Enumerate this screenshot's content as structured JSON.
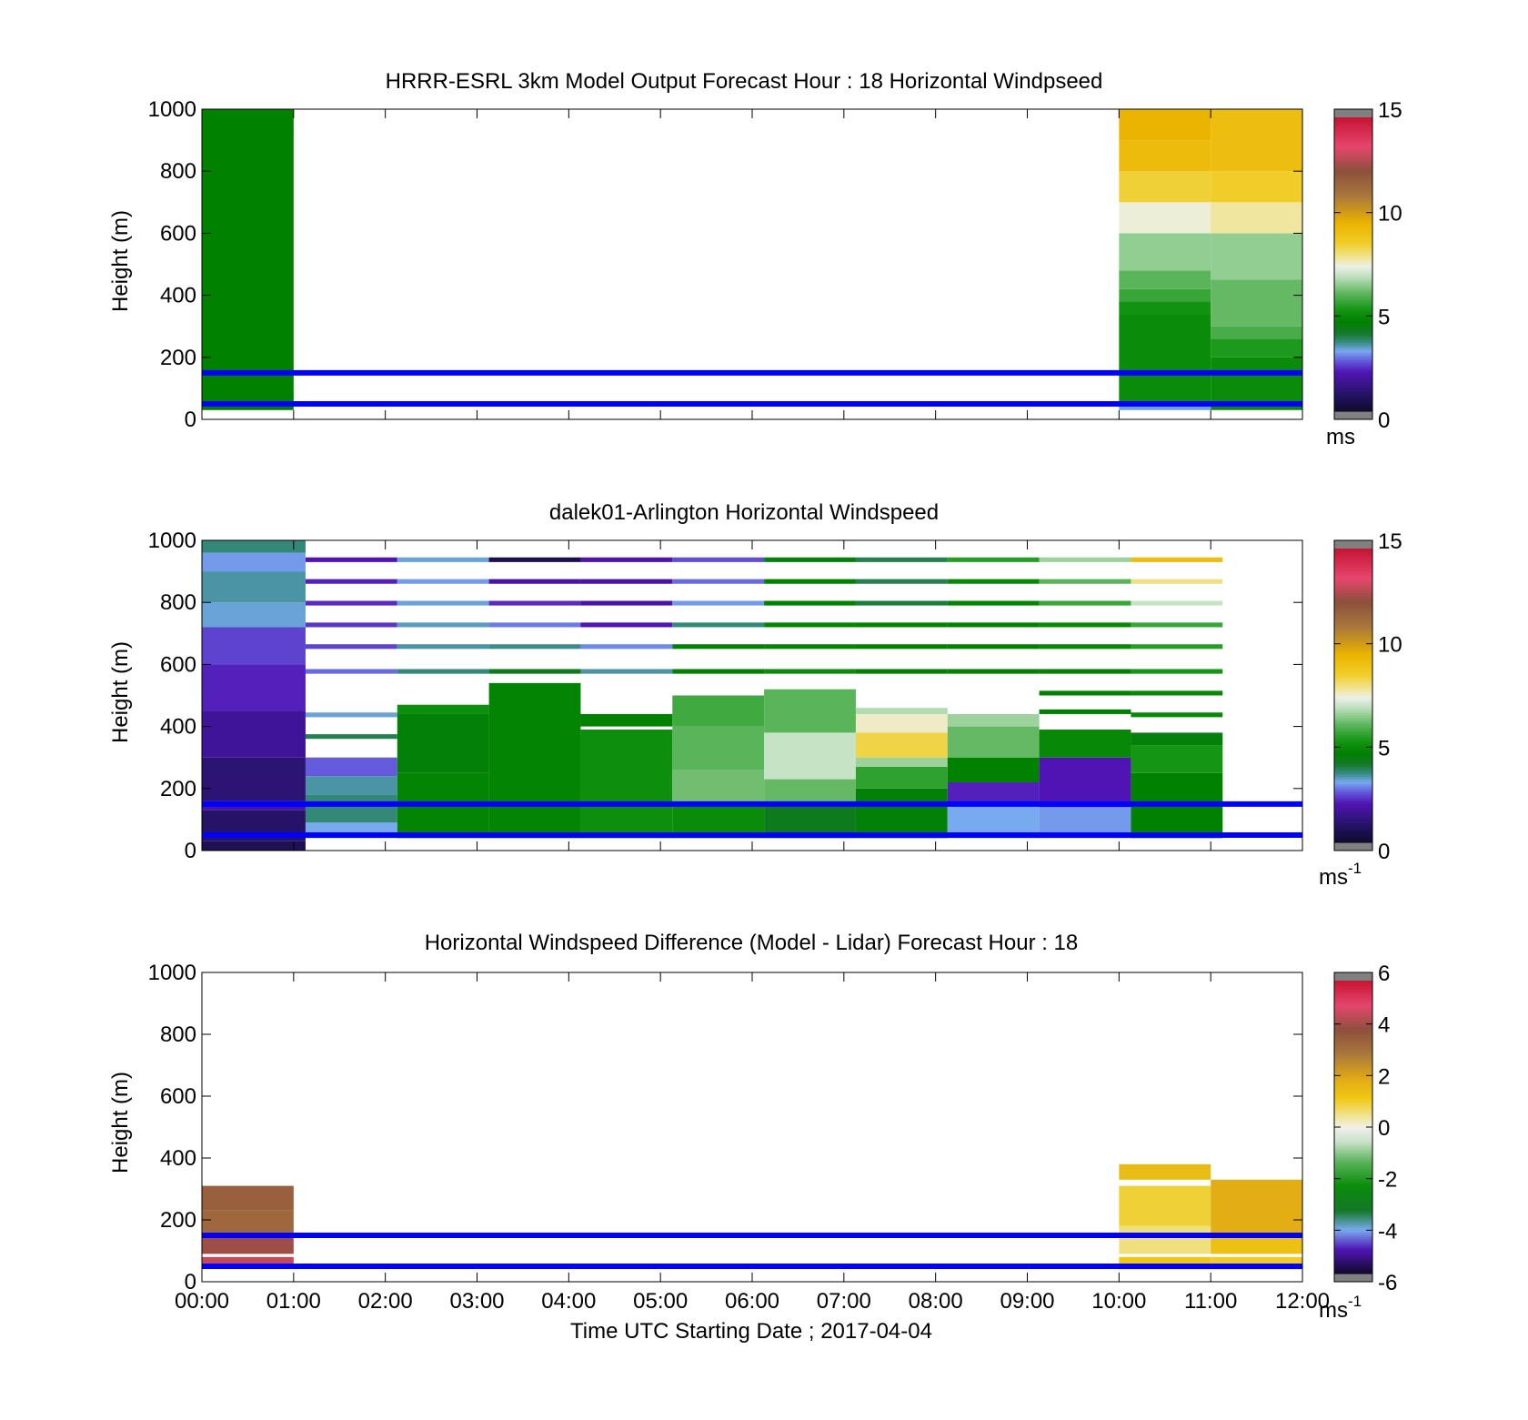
{
  "chart_data": [
    {
      "type": "heatmap",
      "title": "HRRR-ESRL 3km Model Output   Forecast Hour : 18 Horizontal Windpseed",
      "xlabel": "",
      "ylabel": "Height (m)",
      "ylim": [
        0,
        1000
      ],
      "yticks": [
        "0",
        "200",
        "400",
        "600",
        "800",
        "1000"
      ],
      "xticks": [
        "00:00",
        "01:00",
        "02:00",
        "03:00",
        "04:00",
        "05:00",
        "06:00",
        "07:00",
        "08:00",
        "09:00",
        "10:00",
        "11:00",
        "12:00"
      ],
      "xtick_labels_shown": false,
      "colorbar": {
        "min": 0,
        "max": 15,
        "ticks": [
          "0",
          "5",
          "10",
          "15"
        ],
        "unit": "ms",
        "unit_sup": ""
      },
      "hlines": [
        50,
        150
      ],
      "hline_color": "#0000ff",
      "columns": [
        {
          "t0": 0,
          "t1": 1,
          "cells": [
            [
              30,
              1000,
              4.6
            ]
          ]
        },
        {
          "t0": 10,
          "t1": 11,
          "cells": [
            [
              30,
              50,
              3.2
            ],
            [
              50,
              340,
              4.9
            ],
            [
              340,
              380,
              5.1
            ],
            [
              380,
              420,
              5.6
            ],
            [
              420,
              480,
              6.0
            ],
            [
              480,
              600,
              6.5
            ],
            [
              600,
              700,
              7.5
            ],
            [
              700,
              800,
              8.5
            ],
            [
              800,
              900,
              9.3
            ],
            [
              900,
              1000,
              9.6
            ]
          ]
        },
        {
          "t0": 11,
          "t1": 12,
          "cells": [
            [
              30,
              200,
              4.9
            ],
            [
              200,
              260,
              5.3
            ],
            [
              260,
              300,
              5.8
            ],
            [
              300,
              450,
              6.1
            ],
            [
              450,
              600,
              6.5
            ],
            [
              600,
              700,
              7.8
            ],
            [
              700,
              800,
              8.6
            ],
            [
              800,
              1000,
              9.2
            ]
          ]
        }
      ]
    },
    {
      "type": "heatmap",
      "title": "dalek01-Arlington  Horizontal Windspeed",
      "xlabel": "",
      "ylabel": "Height (m)",
      "ylim": [
        0,
        1000
      ],
      "yticks": [
        "0",
        "200",
        "400",
        "600",
        "800",
        "1000"
      ],
      "xticks": [
        "00:00",
        "01:00",
        "02:00",
        "03:00",
        "04:00",
        "05:00",
        "06:00",
        "07:00",
        "08:00",
        "09:00",
        "10:00",
        "11:00",
        "12:00"
      ],
      "xtick_labels_shown": false,
      "colorbar": {
        "min": 0,
        "max": 15,
        "ticks": [
          "0",
          "5",
          "10",
          "15"
        ],
        "unit": "ms",
        "unit_sup": "-1"
      },
      "hlines": [
        50,
        150
      ],
      "hline_color": "#0000ff",
      "columns": [
        {
          "t0": 0,
          "t1": 1.13,
          "cells": [
            [
              0,
              30,
              0.6
            ],
            [
              30,
              130,
              0.9
            ],
            [
              130,
              160,
              1.8
            ],
            [
              160,
              300,
              1.1
            ],
            [
              300,
              450,
              1.6
            ],
            [
              450,
              600,
              2.1
            ],
            [
              600,
              720,
              2.4
            ],
            [
              720,
              800,
              3.2
            ],
            [
              800,
              900,
              3.4
            ],
            [
              900,
              960,
              3.0
            ],
            [
              960,
              1000,
              3.6
            ]
          ]
        },
        {
          "t0": 1.13,
          "t1": 2.13,
          "cells": [
            [
              40,
              90,
              3.1
            ],
            [
              90,
              180,
              3.6
            ],
            [
              180,
              240,
              3.4
            ],
            [
              240,
              300,
              2.6
            ],
            [
              360,
              375,
              3.8
            ],
            [
              430,
              445,
              3.2
            ],
            [
              570,
              585,
              2.7
            ],
            [
              650,
              665,
              2.4
            ],
            [
              720,
              735,
              2.3
            ],
            [
              790,
              805,
              2.2
            ],
            [
              860,
              875,
              2.1
            ],
            [
              930,
              945,
              2.0
            ]
          ]
        },
        {
          "t0": 2.13,
          "t1": 3.13,
          "cells": [
            [
              40,
              250,
              4.7
            ],
            [
              250,
              440,
              4.5
            ],
            [
              440,
              470,
              5.0
            ],
            [
              570,
              585,
              3.6
            ],
            [
              650,
              665,
              3.4
            ],
            [
              720,
              735,
              3.3
            ],
            [
              790,
              805,
              3.2
            ],
            [
              860,
              875,
              3.0
            ],
            [
              930,
              945,
              3.2
            ]
          ]
        },
        {
          "t0": 3.13,
          "t1": 4.13,
          "cells": [
            [
              40,
              540,
              4.7
            ],
            [
              570,
              585,
              4.2
            ],
            [
              650,
              665,
              3.5
            ],
            [
              720,
              735,
              2.8
            ],
            [
              790,
              805,
              2.2
            ],
            [
              860,
              875,
              1.8
            ],
            [
              930,
              945,
              0.5
            ]
          ]
        },
        {
          "t0": 4.13,
          "t1": 5.13,
          "cells": [
            [
              40,
              390,
              5.0
            ],
            [
              400,
              440,
              4.6
            ],
            [
              570,
              585,
              3.4
            ],
            [
              650,
              665,
              2.9
            ],
            [
              720,
              735,
              2.0
            ],
            [
              790,
              805,
              1.8
            ],
            [
              860,
              875,
              1.8
            ],
            [
              930,
              945,
              1.9
            ]
          ]
        },
        {
          "t0": 5.13,
          "t1": 6.13,
          "cells": [
            [
              40,
              150,
              4.9
            ],
            [
              150,
              260,
              6.2
            ],
            [
              260,
              400,
              6.0
            ],
            [
              400,
              500,
              5.7
            ],
            [
              570,
              585,
              4.6
            ],
            [
              650,
              665,
              4.5
            ],
            [
              720,
              735,
              3.6
            ],
            [
              790,
              805,
              3.0
            ],
            [
              860,
              875,
              2.7
            ],
            [
              930,
              945,
              2.5
            ]
          ]
        },
        {
          "t0": 6.13,
          "t1": 7.13,
          "cells": [
            [
              40,
              150,
              4.2
            ],
            [
              150,
              230,
              6.1
            ],
            [
              230,
              380,
              7.0
            ],
            [
              380,
              520,
              6.0
            ],
            [
              570,
              585,
              4.9
            ],
            [
              650,
              665,
              4.7
            ],
            [
              720,
              735,
              4.7
            ],
            [
              790,
              805,
              4.6
            ],
            [
              860,
              875,
              4.6
            ],
            [
              930,
              945,
              4.4
            ]
          ]
        },
        {
          "t0": 7.13,
          "t1": 8.13,
          "cells": [
            [
              40,
              200,
              4.5
            ],
            [
              200,
              270,
              5.5
            ],
            [
              270,
              300,
              6.6
            ],
            [
              300,
              380,
              8.4
            ],
            [
              380,
              440,
              7.6
            ],
            [
              440,
              460,
              6.8
            ],
            [
              570,
              585,
              4.6
            ],
            [
              650,
              665,
              4.6
            ],
            [
              720,
              735,
              4.6
            ],
            [
              790,
              805,
              3.9
            ],
            [
              860,
              875,
              3.8
            ],
            [
              930,
              945,
              3.8
            ]
          ]
        },
        {
          "t0": 8.13,
          "t1": 9.13,
          "cells": [
            [
              40,
              150,
              3.1
            ],
            [
              150,
              220,
              2.1
            ],
            [
              220,
              300,
              4.6
            ],
            [
              300,
              400,
              6.1
            ],
            [
              400,
              440,
              6.6
            ],
            [
              570,
              585,
              4.6
            ],
            [
              650,
              665,
              4.6
            ],
            [
              720,
              735,
              4.6
            ],
            [
              790,
              805,
              4.7
            ],
            [
              860,
              875,
              4.8
            ],
            [
              930,
              945,
              5.4
            ]
          ]
        },
        {
          "t0": 9.13,
          "t1": 10.13,
          "cells": [
            [
              40,
              140,
              3.0
            ],
            [
              140,
              300,
              2.0
            ],
            [
              300,
              390,
              4.8
            ],
            [
              440,
              455,
              4.6
            ],
            [
              500,
              515,
              4.6
            ],
            [
              570,
              585,
              4.6
            ],
            [
              650,
              665,
              4.8
            ],
            [
              720,
              735,
              4.8
            ],
            [
              790,
              805,
              5.6
            ],
            [
              860,
              875,
              6.0
            ],
            [
              930,
              945,
              6.6
            ]
          ]
        },
        {
          "t0": 10.13,
          "t1": 11.13,
          "cells": [
            [
              40,
              250,
              4.6
            ],
            [
              250,
              340,
              5.2
            ],
            [
              340,
              380,
              4.4
            ],
            [
              430,
              445,
              4.8
            ],
            [
              500,
              515,
              4.8
            ],
            [
              570,
              585,
              5.2
            ],
            [
              650,
              665,
              5.4
            ],
            [
              720,
              735,
              5.6
            ],
            [
              790,
              805,
              7.0
            ],
            [
              860,
              875,
              8.0
            ],
            [
              930,
              945,
              9.2
            ]
          ]
        }
      ]
    },
    {
      "type": "heatmap",
      "title": "Horizontal Windspeed Difference (Model - Lidar) Forecast Hour : 18",
      "xlabel": "Time UTC  Starting Date ; 2017-04-04",
      "ylabel": "Height (m)",
      "ylim": [
        0,
        1000
      ],
      "yticks": [
        "0",
        "200",
        "400",
        "600",
        "800",
        "1000"
      ],
      "xticks": [
        "00:00",
        "01:00",
        "02:00",
        "03:00",
        "04:00",
        "05:00",
        "06:00",
        "07:00",
        "08:00",
        "09:00",
        "10:00",
        "11:00",
        "12:00"
      ],
      "xtick_labels_shown": true,
      "colorbar": {
        "min": -6,
        "max": 6,
        "ticks": [
          "-6",
          "-4",
          "-2",
          "0",
          "2",
          "4",
          "6"
        ],
        "unit": "ms",
        "unit_sup": "-1"
      },
      "hlines": [
        50,
        150
      ],
      "hline_color": "#0000ff",
      "columns": [
        {
          "t0": 0,
          "t1": 1,
          "cells": [
            [
              50,
              80,
              4.6
            ],
            [
              90,
              160,
              4.2
            ],
            [
              160,
              230,
              3.4
            ],
            [
              230,
              310,
              3.6
            ]
          ]
        },
        {
          "t0": 10,
          "t1": 11,
          "cells": [
            [
              40,
              80,
              1.2
            ],
            [
              90,
              180,
              0.6
            ],
            [
              180,
              310,
              1.0
            ],
            [
              330,
              360,
              1.5
            ],
            [
              360,
              380,
              1.6
            ]
          ]
        },
        {
          "t0": 11,
          "t1": 12,
          "cells": [
            [
              40,
              80,
              1.1
            ],
            [
              90,
              150,
              1.4
            ],
            [
              150,
              330,
              1.9
            ]
          ]
        }
      ]
    }
  ]
}
